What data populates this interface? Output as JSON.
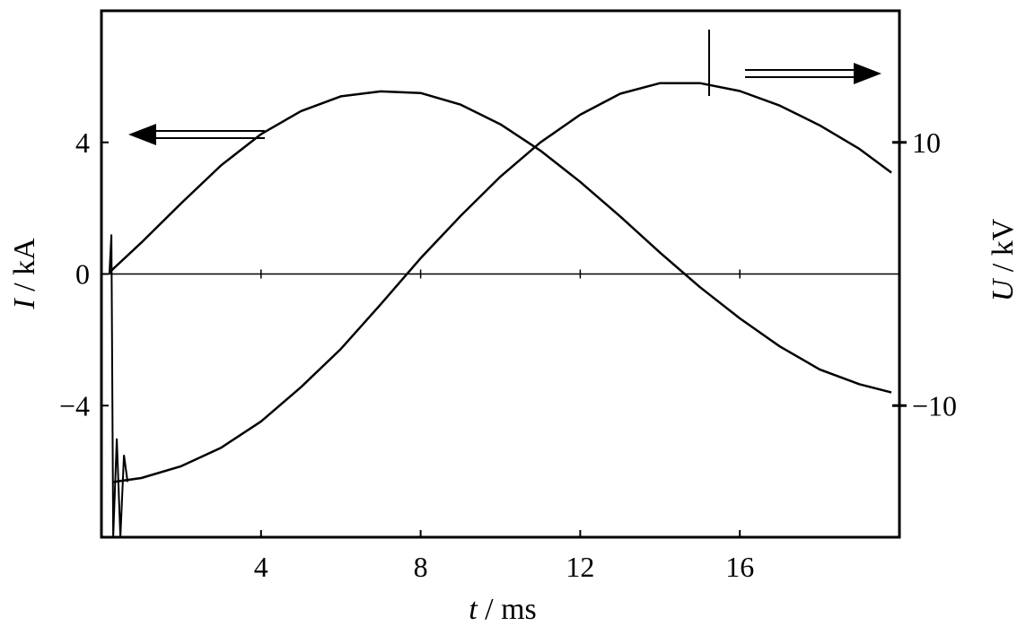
{
  "chart_data": {
    "type": "line",
    "title": "",
    "xlabel": {
      "var": "t",
      "unit": " / ms"
    },
    "ylabel_left": {
      "var": "I",
      "unit": " / kA"
    },
    "ylabel_right": {
      "var": "U",
      "unit": " / kV"
    },
    "xlim": [
      0,
      20
    ],
    "ylim_left": [
      -8,
      8
    ],
    "ylim_right": [
      -20,
      20
    ],
    "x_ticks": [
      4,
      8,
      12,
      16
    ],
    "x_tick_labels": [
      "4",
      "8",
      "12",
      "16"
    ],
    "y_left_ticks": [
      4,
      0,
      -4
    ],
    "y_left_tick_labels": [
      "4",
      "0",
      "−4"
    ],
    "y_right_ticks": [
      10,
      -10
    ],
    "y_right_tick_labels": [
      "10",
      "−10"
    ],
    "grid": false,
    "zero_line": true,
    "series": [
      {
        "axis": "left",
        "x": [
          0.2,
          1,
          2,
          3,
          4,
          5,
          6,
          7,
          8,
          9,
          10,
          11,
          12,
          13,
          14,
          15,
          16,
          17,
          18,
          19,
          19.8
        ],
        "y": [
          0.05,
          0.95,
          2.15,
          3.3,
          4.25,
          4.95,
          5.4,
          5.55,
          5.5,
          5.15,
          4.55,
          3.75,
          2.8,
          1.75,
          0.65,
          -0.4,
          -1.35,
          -2.2,
          -2.9,
          -3.35,
          -3.6
        ]
      },
      {
        "axis": "right",
        "x": [
          0.3,
          1,
          2,
          3,
          4,
          5,
          6,
          7,
          8,
          9,
          10,
          11,
          12,
          13,
          14,
          15,
          16,
          17,
          18,
          19,
          19.8
        ],
        "y": [
          -15.8,
          -15.5,
          -14.6,
          -13.2,
          -11.2,
          -8.6,
          -5.7,
          -2.3,
          1.2,
          4.4,
          7.4,
          10.0,
          12.1,
          13.7,
          14.5,
          14.5,
          13.9,
          12.8,
          11.3,
          9.5,
          7.7
        ]
      }
    ]
  }
}
